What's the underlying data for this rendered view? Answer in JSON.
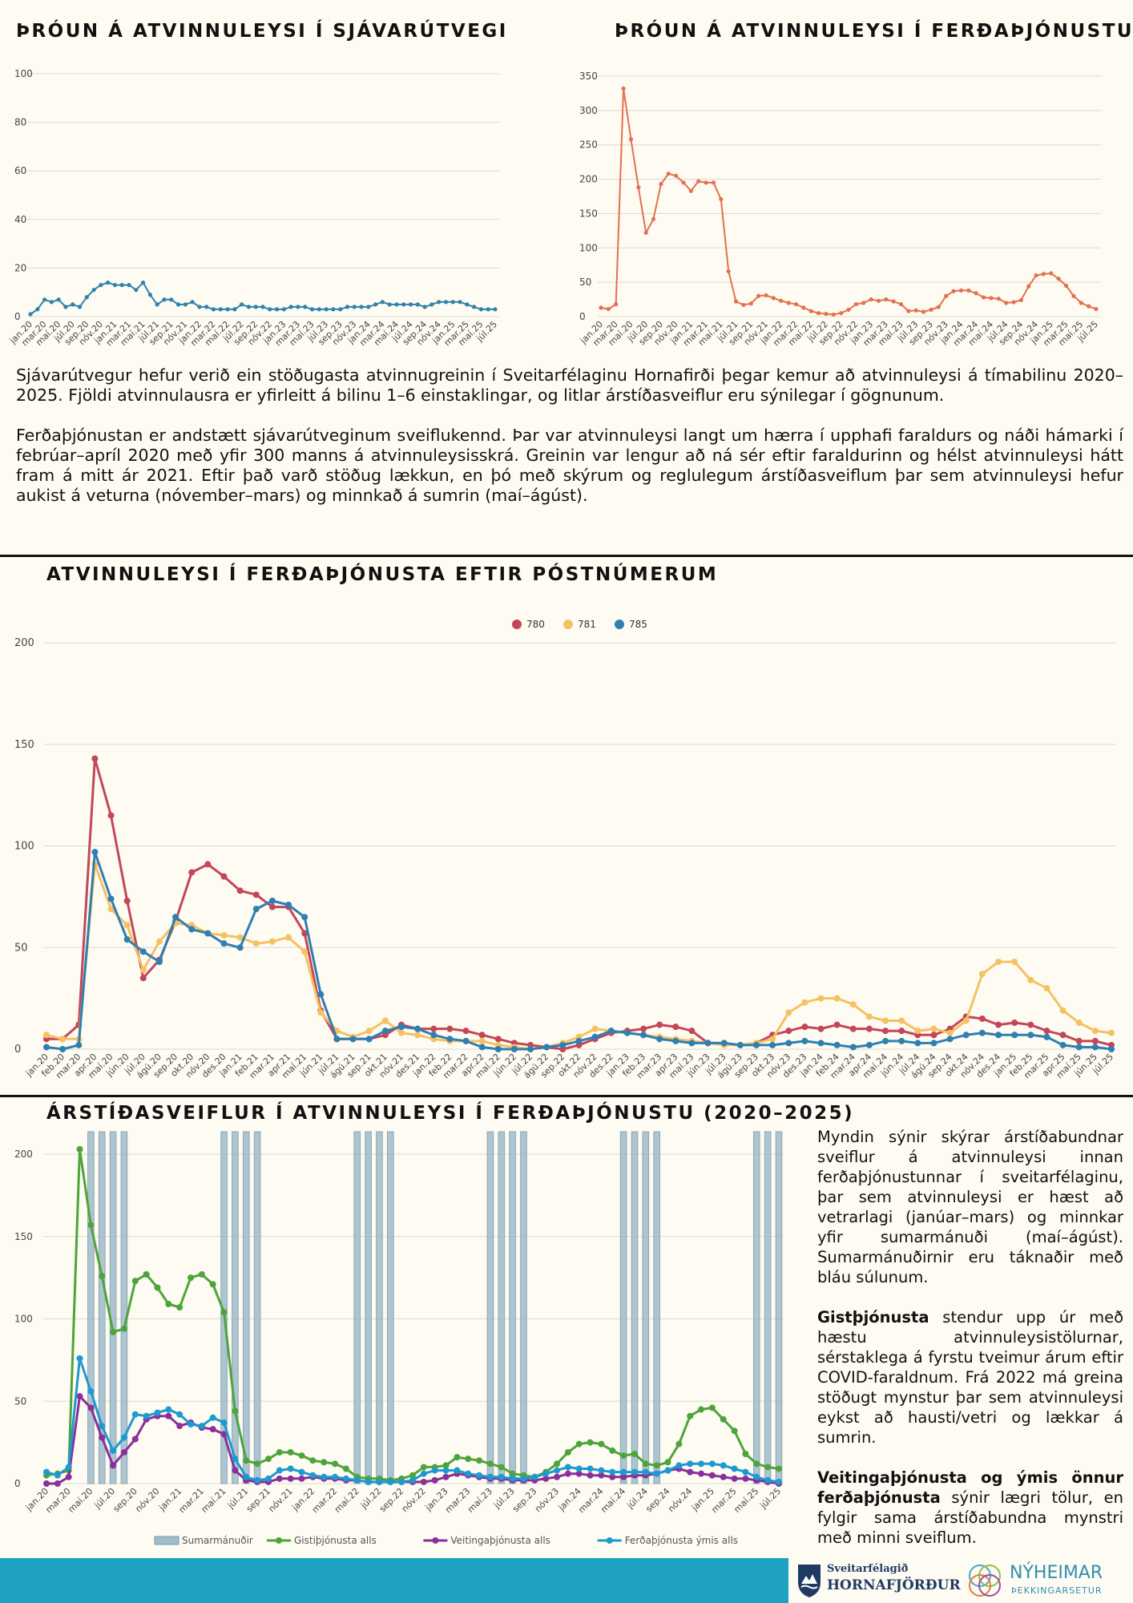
{
  "section1": {
    "left_title": "ÞRÓUN Á ATVINNULEYSI Í SJÁVARÚTVEGI",
    "right_title": "ÞRÓUN Á ATVINNULEYSI Í FERÐAÞJÓNUSTU",
    "paragraph1": "Sjávarútvegur hefur verið ein stöðugasta atvinnugreinin í Sveitarfélaginu Hornafirði þegar kemur að atvinnuleysi á tímabilinu 2020–2025. Fjöldi atvinnulausra er yfirleitt á bilinu 1–6 einstaklingar, og litlar árstíðasveiflur eru sýnilegar í gögnunum.",
    "paragraph2": "Ferðaþjónustan er andstætt sjávarútveginum sveiflukennd. Þar var atvinnuleysi langt um hærra í upphafi faraldurs og náði hámarki í febrúar–apríl 2020 með yfir 300 manns á atvinnuleysisskrá. Greinin var lengur að ná sér eftir faraldurinn og hélst atvinnuleysi hátt fram á mitt ár 2021. Eftir það varð stöðug lækkun, en þó með skýrum og reglulegum árstíðasveiflum þar sem atvinnuleysi hefur aukist á veturna (nóvember–mars) og minnkað á sumrin (maí–ágúst)."
  },
  "section2": {
    "title": "ATVINNULEYSI Í FERÐAÞJÓNUSTA EFTIR PÓSTNÚMERUM"
  },
  "section3": {
    "title": "ÁRSTÍÐASVEIFLUR Í ATVINNULEYSI Í FERÐAÞJÓNUSTU (2020–2025)",
    "side_p1": "Myndin sýnir skýrar árstíðabundnar sveiflur á atvinnuleysi innan ferðaþjónustunnar í sveitarfélaginu, þar sem atvinnuleysi er hæst að vetrarlagi (janúar–mars) og minnkar yfir sumarmánuði (maí–ágúst). Sumarmánuðirnir eru táknaðir með bláu súlunum.",
    "side_p2_bold": "Gistþjónusta",
    "side_p2_rest": " stendur upp úr með hæstu atvinnuleysistölurnar, sérstaklega á fyrstu tveimur árum eftir COVID-faraldnum. Frá 2022 má greina stöðugt mynstur þar sem atvinnuleysi eykst að hausti/vetri og lækkar á sumrin.",
    "side_p3_bold": "Veitingaþjónusta og ýmis önnur ferðaþjónusta",
    "side_p3_rest": " sýnir lægri tölur, en fylgir sama árstíðabundna mynstri með minni sveiflum."
  },
  "footer": {
    "logo1_small": "Sveitarfélagið",
    "logo1_big": "HORNAFJÖRÐUR",
    "logo2_big": "NÝHEIMAR",
    "logo2_small": "ÞEKKINGARSETUR"
  },
  "chart_data": [
    {
      "type": "line",
      "x": [
        "jan.20",
        "feb.20",
        "mar.20",
        "apr.20",
        "maí.20",
        "jún.20",
        "júl.20",
        "ágú.20",
        "sep.20",
        "okt.20",
        "nóv.20",
        "des.20",
        "jan.21",
        "feb.21",
        "mar.21",
        "apr.21",
        "maí.21",
        "jún.21",
        "júl.21",
        "ágú.21",
        "sep.21",
        "okt.21",
        "nóv.21",
        "des.21",
        "jan.22",
        "feb.22",
        "mar.22",
        "apr.22",
        "maí.22",
        "jún.22",
        "júl.22",
        "ágú.22",
        "sep.22",
        "okt.22",
        "nóv.22",
        "des.22",
        "jan.23",
        "feb.23",
        "mar.23",
        "apr.23",
        "maí.23",
        "jún.23",
        "júl.23",
        "ágú.23",
        "sep.23",
        "okt.23",
        "nóv.23",
        "des.23",
        "jan.24",
        "feb.24",
        "mar.24",
        "apr.24",
        "maí.24",
        "jún.24",
        "júl.24",
        "ágú.24",
        "sep.24",
        "okt.24",
        "nóv.24",
        "des.24",
        "jan.25",
        "feb.25",
        "mar.25",
        "apr.25",
        "maí.25",
        "jún.25",
        "júl.25"
      ],
      "x_tick_labels": [
        "jan.20",
        "mar.20",
        "maí.20",
        "júl.20",
        "sep.20",
        "nóv.20",
        "jan.21",
        "mar.21",
        "maí.21",
        "júl.21",
        "sep.21",
        "nóv.21",
        "jan.22",
        "mar.22",
        "maí.22",
        "júl.22",
        "sep.22",
        "nóv.22",
        "jan.23",
        "mar.23",
        "maí.23",
        "júl.23",
        "sep.23",
        "nóv.23",
        "jan.24",
        "mar.24",
        "maí.24",
        "júl.24",
        "sep.24",
        "nóv.24",
        "jan.25",
        "mar.25",
        "maí.25",
        "júl.25"
      ],
      "values": [
        1,
        3,
        7,
        6,
        7,
        4,
        5,
        4,
        8,
        11,
        13,
        14,
        13,
        13,
        13,
        11,
        14,
        9,
        5,
        7,
        7,
        5,
        5,
        6,
        4,
        4,
        3,
        3,
        3,
        3,
        5,
        4,
        4,
        4,
        3,
        3,
        3,
        4,
        4,
        4,
        3,
        3,
        3,
        3,
        3,
        4,
        4,
        4,
        4,
        5,
        6,
        5,
        5,
        5,
        5,
        5,
        4,
        5,
        6,
        6,
        6,
        6,
        5,
        4,
        3,
        3,
        3
      ],
      "ylim": [
        0,
        100
      ],
      "yticks": [
        0,
        20,
        40,
        60,
        80,
        100
      ],
      "color": "#2f82aa",
      "grid": true
    },
    {
      "type": "line",
      "x": [
        "jan.20",
        "feb.20",
        "mar.20",
        "apr.20",
        "maí.20",
        "jún.20",
        "júl.20",
        "ágú.20",
        "sep.20",
        "okt.20",
        "nóv.20",
        "des.20",
        "jan.21",
        "feb.21",
        "mar.21",
        "apr.21",
        "maí.21",
        "jún.21",
        "júl.21",
        "ágú.21",
        "sep.21",
        "okt.21",
        "nóv.21",
        "des.21",
        "jan.22",
        "feb.22",
        "mar.22",
        "apr.22",
        "maí.22",
        "jún.22",
        "júl.22",
        "ágú.22",
        "sep.22",
        "okt.22",
        "nóv.22",
        "des.22",
        "jan.23",
        "feb.23",
        "mar.23",
        "apr.23",
        "maí.23",
        "jún.23",
        "júl.23",
        "ágú.23",
        "sep.23",
        "okt.23",
        "nóv.23",
        "des.23",
        "jan.24",
        "feb.24",
        "mar.24",
        "apr.24",
        "maí.24",
        "jún.24",
        "júl.24",
        "ágú.24",
        "sep.24",
        "okt.24",
        "nóv.24",
        "des.24",
        "jan.25",
        "feb.25",
        "mar.25",
        "apr.25",
        "maí.25",
        "jún.25",
        "júl.25"
      ],
      "x_tick_labels": [
        "jan.20",
        "mar.20",
        "maí.20",
        "júl.20",
        "sep.20",
        "nóv.20",
        "jan.21",
        "mar.21",
        "maí.21",
        "júl.21",
        "sep.21",
        "nóv.21",
        "jan.22",
        "mar.22",
        "maí.22",
        "júl.22",
        "sep.22",
        "nóv.22",
        "jan.23",
        "mar.23",
        "maí.23",
        "júl.23",
        "sep.23",
        "nóv.23",
        "jan.24",
        "mar.24",
        "maí.24",
        "júl.24",
        "sep.24",
        "nóv.24",
        "jan.25",
        "mar.25",
        "maí.25",
        "júl.25"
      ],
      "values": [
        13,
        11,
        18,
        332,
        258,
        188,
        122,
        142,
        193,
        208,
        205,
        195,
        183,
        197,
        195,
        195,
        171,
        66,
        22,
        17,
        19,
        30,
        31,
        27,
        23,
        20,
        18,
        13,
        8,
        5,
        4,
        3,
        5,
        10,
        18,
        20,
        25,
        23,
        25,
        22,
        18,
        8,
        9,
        7,
        10,
        14,
        30,
        37,
        38,
        38,
        34,
        28,
        27,
        26,
        20,
        21,
        24,
        44,
        60,
        62,
        63,
        55,
        45,
        30,
        20,
        15,
        11
      ],
      "ylim": [
        0,
        350
      ],
      "yticks": [
        0,
        50,
        100,
        150,
        200,
        250,
        300,
        350
      ],
      "color": "#e4704f",
      "grid": true
    },
    {
      "type": "line",
      "x": [
        "jan.20",
        "feb.20",
        "mar.20",
        "apr.20",
        "maí.20",
        "jún.20",
        "júl.20",
        "ágú.20",
        "sep.20",
        "okt.20",
        "nóv.20",
        "des.20",
        "jan.21",
        "feb.21",
        "mar.21",
        "apr.21",
        "maí.21",
        "jún.21",
        "júl.21",
        "ágú.21",
        "sep.21",
        "okt.21",
        "nóv.21",
        "des.21",
        "jan.22",
        "feb.22",
        "mar.22",
        "apr.22",
        "maí.22",
        "jún.22",
        "júl.22",
        "ágú.22",
        "sep.22",
        "okt.22",
        "nóv.22",
        "des.22",
        "jan.23",
        "feb.23",
        "mar.23",
        "apr.23",
        "maí.23",
        "jún.23",
        "júl.23",
        "ágú.23",
        "sep.23",
        "okt.23",
        "nóv.23",
        "des.23",
        "jan.24",
        "feb.24",
        "mar.24",
        "apr.24",
        "maí.24",
        "jún.24",
        "júl.24",
        "ágú.24",
        "sep.24",
        "okt.24",
        "nóv.24",
        "des.24",
        "jan.25",
        "feb.25",
        "mar.25",
        "apr.25",
        "maí.25",
        "jún.25",
        "júl.25"
      ],
      "x_tick_labels": [
        "jan.20",
        "feb.20",
        "mar.20",
        "apr.20",
        "maí.20",
        "jún.20",
        "júl.20",
        "ágú.20",
        "sep.20",
        "okt.20",
        "nóv.20",
        "des.20",
        "jan.21",
        "feb.21",
        "mar.21",
        "apr.21",
        "maí.21",
        "jún.21",
        "júl.21",
        "ágú.21",
        "sep.21",
        "okt.21",
        "nóv.21",
        "des.21",
        "jan.22",
        "feb.22",
        "mar.22",
        "apr.22",
        "maí.22",
        "jún.22",
        "júl.22",
        "ágú.22",
        "sep.22",
        "okt.22",
        "nóv.22",
        "des.22",
        "jan.23",
        "feb.23",
        "mar.23",
        "apr.23",
        "maí.23",
        "jún.23",
        "júl.23",
        "ágú.23",
        "sep.23",
        "okt.23",
        "nóv.23",
        "des.23",
        "jan.24",
        "feb.24",
        "mar.24",
        "apr.24",
        "maí.24",
        "jún.24",
        "júl.24",
        "ágú.24",
        "sep.24",
        "okt.24",
        "nóv.24",
        "des.24",
        "jan.25",
        "feb.25",
        "mar.25",
        "apr.25",
        "maí.25",
        "jún.25",
        "júl.25"
      ],
      "ylim": [
        0,
        200
      ],
      "yticks": [
        0,
        50,
        100,
        150,
        200
      ],
      "grid": true,
      "legend_position": "top-center",
      "series": [
        {
          "name": "780",
          "color": "#c44658",
          "values": [
            5,
            5,
            12,
            143,
            115,
            73,
            35,
            44,
            63,
            87,
            91,
            85,
            78,
            76,
            70,
            70,
            57,
            19,
            5,
            5,
            5,
            7,
            12,
            10,
            10,
            10,
            9,
            7,
            5,
            3,
            2,
            1,
            0,
            2,
            5,
            8,
            9,
            10,
            12,
            11,
            9,
            3,
            3,
            2,
            3,
            7,
            9,
            11,
            10,
            12,
            10,
            10,
            9,
            9,
            7,
            7,
            10,
            16,
            15,
            12,
            13,
            12,
            9,
            7,
            4,
            4,
            2
          ]
        },
        {
          "name": "781",
          "color": "#f6c162",
          "values": [
            7,
            5,
            5,
            91,
            69,
            61,
            39,
            53,
            62,
            61,
            57,
            56,
            55,
            52,
            53,
            55,
            48,
            18,
            9,
            6,
            9,
            14,
            8,
            7,
            5,
            4,
            4,
            4,
            2,
            1,
            0,
            1,
            3,
            6,
            10,
            9,
            8,
            7,
            6,
            5,
            4,
            3,
            2,
            2,
            3,
            5,
            18,
            23,
            25,
            25,
            22,
            16,
            14,
            14,
            9,
            10,
            8,
            14,
            37,
            43,
            43,
            34,
            30,
            19,
            13,
            9,
            8
          ]
        },
        {
          "name": "785",
          "color": "#2f7fb1",
          "values": [
            1,
            0,
            2,
            97,
            74,
            54,
            48,
            43,
            65,
            59,
            57,
            52,
            50,
            69,
            73,
            71,
            65,
            27,
            5,
            5,
            5,
            9,
            11,
            10,
            7,
            5,
            4,
            1,
            0,
            0,
            0,
            1,
            2,
            4,
            6,
            9,
            8,
            7,
            5,
            4,
            3,
            3,
            3,
            2,
            2,
            2,
            3,
            4,
            3,
            2,
            1,
            2,
            4,
            4,
            3,
            3,
            5,
            7,
            8,
            7,
            7,
            7,
            6,
            2,
            1,
            1,
            0
          ]
        }
      ]
    },
    {
      "type": "line",
      "x": [
        "jan.20",
        "feb.20",
        "mar.20",
        "apr.20",
        "maí.20",
        "jún.20",
        "júl.20",
        "ágú.20",
        "sep.20",
        "okt.20",
        "nóv.20",
        "des.20",
        "jan.21",
        "feb.21",
        "mar.21",
        "apr.21",
        "maí.21",
        "jún.21",
        "júl.21",
        "ágú.21",
        "sep.21",
        "okt.21",
        "nóv.21",
        "des.21",
        "jan.22",
        "feb.22",
        "mar.22",
        "apr.22",
        "maí.22",
        "jún.22",
        "júl.22",
        "ágú.22",
        "sep.22",
        "okt.22",
        "nóv.22",
        "des.22",
        "jan.23",
        "feb.23",
        "mar.23",
        "apr.23",
        "maí.23",
        "jún.23",
        "júl.23",
        "ágú.23",
        "sep.23",
        "okt.23",
        "nóv.23",
        "des.23",
        "jan.24",
        "feb.24",
        "mar.24",
        "apr.24",
        "maí.24",
        "jún.24",
        "júl.24",
        "ágú.24",
        "sep.24",
        "okt.24",
        "nóv.24",
        "des.24",
        "jan.25",
        "feb.25",
        "mar.25",
        "apr.25",
        "maí.25",
        "jún.25",
        "júl.25"
      ],
      "x_tick_labels": [
        "jan.20",
        "mar.20",
        "maí.20",
        "júl.20",
        "sep.20",
        "nóv.20",
        "jan.21",
        "mar.21",
        "maí.21",
        "júl.21",
        "sep.21",
        "nóv.21",
        "jan.22",
        "mar.22",
        "maí.22",
        "júl.22",
        "sep.22",
        "nóv.22",
        "jan.23",
        "mar.23",
        "maí.23",
        "júl.23",
        "sep.23",
        "nóv.23",
        "jan.24",
        "mar.24",
        "maí.24",
        "júl.24",
        "sep.24",
        "nóv.24",
        "jan.25",
        "mar.25",
        "maí.25",
        "júl.25"
      ],
      "ylim": [
        0,
        200
      ],
      "yticks": [
        0,
        50,
        100,
        150,
        200
      ],
      "grid": true,
      "legend_position": "bottom",
      "summer_months": [
        "maí",
        "jún",
        "júl",
        "ágú"
      ],
      "summer_label": "Sumarmánuðir",
      "summer_color": "#9fbccb",
      "series": [
        {
          "name": "Gistiþjónusta alls",
          "color": "#4ea43b",
          "values": [
            5,
            6,
            8,
            203,
            157,
            126,
            92,
            94,
            123,
            127,
            119,
            109,
            107,
            125,
            127,
            121,
            104,
            44,
            14,
            12,
            15,
            19,
            19,
            17,
            14,
            13,
            12,
            9,
            4,
            3,
            3,
            2,
            3,
            5,
            10,
            10,
            11,
            16,
            15,
            14,
            12,
            10,
            6,
            5,
            4,
            7,
            12,
            19,
            24,
            25,
            24,
            20,
            17,
            18,
            12,
            11,
            13,
            24,
            41,
            45,
            46,
            39,
            32,
            18,
            12,
            10,
            9
          ]
        },
        {
          "name": "Veitingaþjónusta alls",
          "color": "#8b2f9a",
          "values": [
            0,
            0,
            4,
            53,
            46,
            28,
            11,
            19,
            27,
            39,
            41,
            41,
            35,
            37,
            34,
            33,
            30,
            8,
            2,
            1,
            1,
            3,
            3,
            3,
            4,
            3,
            3,
            2,
            2,
            1,
            1,
            1,
            1,
            1,
            1,
            2,
            4,
            6,
            5,
            4,
            3,
            3,
            2,
            2,
            2,
            3,
            4,
            6,
            6,
            5,
            5,
            4,
            4,
            5,
            5,
            6,
            8,
            9,
            7,
            6,
            5,
            4,
            3,
            3,
            2,
            1,
            0
          ]
        },
        {
          "name": "Ferðaþjónusta ýmis alls",
          "color": "#1d9ad0",
          "values": [
            7,
            5,
            10,
            76,
            56,
            35,
            20,
            28,
            42,
            41,
            43,
            45,
            42,
            36,
            35,
            40,
            37,
            15,
            4,
            2,
            3,
            8,
            9,
            7,
            5,
            4,
            4,
            3,
            2,
            1,
            1,
            1,
            1,
            2,
            6,
            8,
            8,
            8,
            6,
            5,
            4,
            4,
            3,
            3,
            4,
            6,
            8,
            10,
            9,
            9,
            8,
            7,
            7,
            7,
            7,
            6,
            8,
            11,
            12,
            12,
            12,
            11,
            9,
            7,
            4,
            2,
            1
          ]
        }
      ]
    }
  ]
}
